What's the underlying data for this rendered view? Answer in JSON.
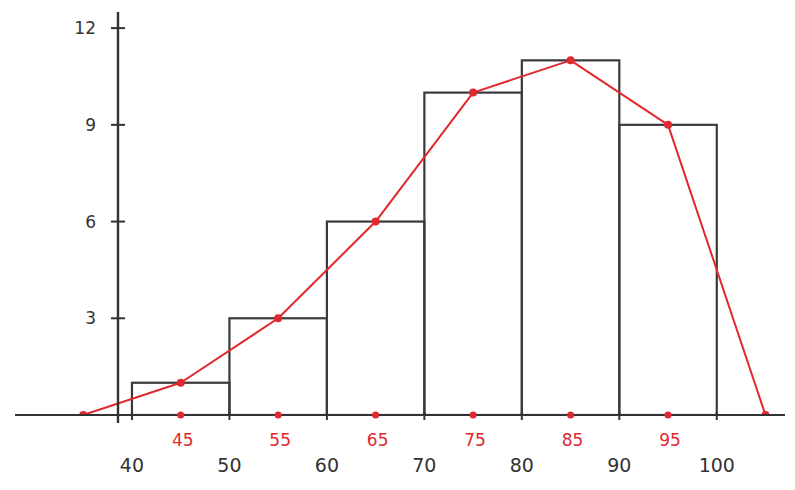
{
  "chart_data": {
    "type": "histogram",
    "bins": [
      40,
      50,
      60,
      70,
      80,
      90,
      100
    ],
    "values": [
      1,
      3,
      6,
      10,
      11,
      9
    ],
    "color": "#3a3a3a",
    "xlim": [
      28,
      107
    ],
    "ylim": [
      0,
      12.5
    ],
    "xticks": [
      40,
      50,
      60,
      70,
      80,
      90,
      100
    ],
    "yticks": [
      3,
      6,
      9,
      12
    ],
    "series": [
      {
        "type": "line",
        "color": "#e0282e",
        "marker": "circle",
        "x": [
          35,
          45,
          55,
          65,
          75,
          85,
          95,
          105
        ],
        "values": [
          0,
          1,
          3,
          6,
          10,
          11,
          9,
          0
        ]
      }
    ],
    "midpoints": {
      "values": [
        45,
        55,
        65,
        75,
        85,
        95
      ],
      "color": "#e0282e"
    }
  }
}
